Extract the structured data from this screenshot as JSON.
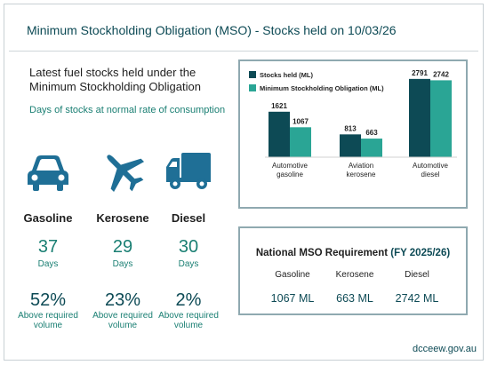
{
  "header": {
    "title": "Minimum Stockholding Obligation (MSO) - Stocks held on 10/03/26"
  },
  "summary": {
    "heading": "Latest fuel stocks held under the Minimum Stockholding Obligation",
    "subheading": "Days of stocks at normal rate of consumption"
  },
  "fuels": [
    {
      "name": "Gasoline",
      "icon": "car-icon",
      "days": "37",
      "days_label": "Days",
      "pct": "52%",
      "above_label": "Above required volume"
    },
    {
      "name": "Kerosene",
      "icon": "airplane-icon",
      "days": "29",
      "days_label": "Days",
      "pct": "23%",
      "above_label": "Above required volume"
    },
    {
      "name": "Diesel",
      "icon": "truck-icon",
      "days": "30",
      "days_label": "Days",
      "pct": "2%",
      "above_label": "Above required volume"
    }
  ],
  "chart_data": {
    "type": "bar",
    "categories": [
      "Automotive gasoline",
      "Aviation kerosene",
      "Automotive diesel"
    ],
    "series": [
      {
        "name": "Stocks held (ML)",
        "values": [
          1621,
          813,
          2791
        ],
        "color": "#0d4a55"
      },
      {
        "name": "Minimum Stockholding Obligation (ML)",
        "values": [
          1067,
          663,
          2742
        ],
        "color": "#2aa595"
      }
    ],
    "legend": "top-left",
    "grid": false
  },
  "requirement": {
    "title": "National MSO Requirement",
    "year": "(FY 2025/26)",
    "items": [
      {
        "name": "Gasoline",
        "value": "1067 ML"
      },
      {
        "name": "Kerosene",
        "value": "663 ML"
      },
      {
        "name": "Diesel",
        "value": "2742 ML"
      }
    ]
  },
  "footer": {
    "source": "dcceew.gov.au"
  },
  "colors": {
    "dark_teal": "#0d4a55",
    "teal": "#1a7f73",
    "light_teal": "#2aa595",
    "icon_blue": "#1f6f96"
  }
}
